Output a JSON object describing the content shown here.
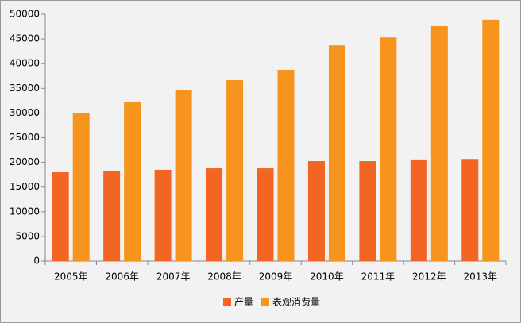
{
  "chart_data": {
    "type": "bar",
    "categories": [
      "2005年",
      "2006年",
      "2007年",
      "2008年",
      "2009年",
      "2010年",
      "2011年",
      "2012年",
      "2013年"
    ],
    "series": [
      {
        "name": "产量",
        "color": "#f26522",
        "values": [
          18000,
          18300,
          18500,
          18800,
          18800,
          20250,
          20250,
          20600,
          20700
        ]
      },
      {
        "name": "表观消费量",
        "color": "#f7941d",
        "values": [
          29900,
          32300,
          34600,
          36650,
          38750,
          43700,
          45300,
          47600,
          48900
        ]
      }
    ],
    "ylim": [
      0,
      50000
    ],
    "yticks": [
      0,
      5000,
      10000,
      15000,
      20000,
      25000,
      30000,
      35000,
      40000,
      45000,
      50000
    ],
    "grid": false,
    "legend": "bottom"
  }
}
